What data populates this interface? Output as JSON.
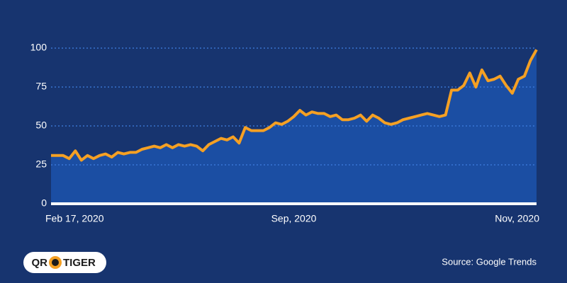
{
  "chart_data": {
    "type": "area",
    "categories": [
      "Feb 17, 2020",
      null,
      null,
      null,
      null,
      null,
      null,
      null,
      null,
      null,
      null,
      null,
      null,
      null,
      null,
      null,
      null,
      null,
      null,
      null,
      null,
      null,
      null,
      null,
      null,
      null,
      null,
      null,
      null,
      null,
      null,
      null,
      null,
      null,
      null,
      null,
      null,
      null,
      null,
      null,
      "Sep, 2020",
      null,
      null,
      null,
      null,
      null,
      null,
      null,
      null,
      null,
      null,
      null,
      null,
      null,
      null,
      null,
      null,
      null,
      null,
      null,
      null,
      null,
      null,
      null,
      null,
      null,
      null,
      null,
      null,
      null,
      null,
      null,
      null,
      null,
      null,
      null,
      null,
      null,
      null,
      null,
      "Nov, 2020"
    ],
    "values": [
      31,
      31,
      31,
      29,
      34,
      28,
      31,
      29,
      31,
      32,
      30,
      33,
      32,
      33,
      33,
      35,
      36,
      37,
      36,
      38,
      36,
      38,
      37,
      38,
      37,
      34,
      38,
      40,
      42,
      41,
      43,
      39,
      49,
      47,
      47,
      47,
      49,
      52,
      51,
      53,
      56,
      60,
      57,
      59,
      58,
      58,
      56,
      57,
      54,
      54,
      55,
      57,
      53,
      57,
      55,
      52,
      51,
      52,
      54,
      55,
      56,
      57,
      58,
      57,
      56,
      57,
      73,
      73,
      76,
      84,
      75,
      86,
      79,
      80,
      82,
      76,
      71,
      80,
      82,
      92,
      99
    ],
    "color": "#f5a023",
    "fill_color": "#1b4ea3",
    "ylim": [
      0,
      100
    ],
    "yticks": [
      0,
      25,
      50,
      75,
      100
    ],
    "grid": true
  },
  "source": "Source: Google Trends",
  "logo": {
    "left": "QR",
    "right": "TIGER"
  }
}
